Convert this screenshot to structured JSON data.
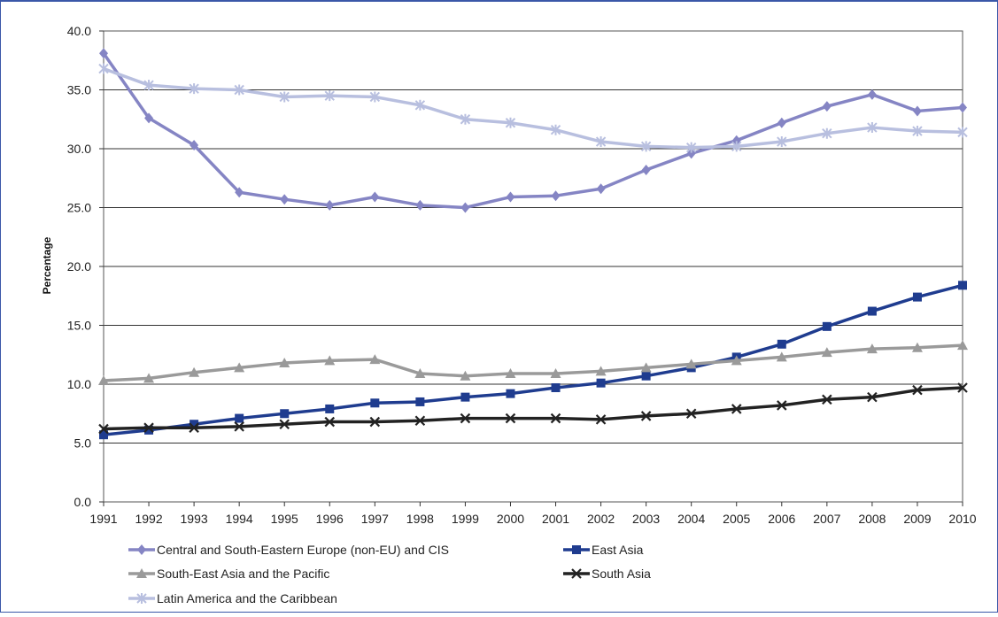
{
  "chart_data": {
    "type": "line",
    "title": "",
    "xlabel": "",
    "ylabel": "Percentage",
    "ylim": [
      0,
      40
    ],
    "ytick_step": 5,
    "grid": "horizontal",
    "legend_placement": "bottom",
    "categories": [
      "1991",
      "1992",
      "1993",
      "1994",
      "1995",
      "1996",
      "1997",
      "1998",
      "1999",
      "2000",
      "2001",
      "2002",
      "2003",
      "2004",
      "2005",
      "2006",
      "2007",
      "2008",
      "2009",
      "2010"
    ],
    "series": [
      {
        "name": "Central and South-Eastern Europe (non-EU) and CIS",
        "color": "#8585c4",
        "marker": "diamond",
        "values": [
          38.1,
          32.6,
          30.3,
          26.3,
          25.7,
          25.2,
          25.9,
          25.2,
          25.0,
          25.9,
          26.0,
          26.6,
          28.2,
          29.6,
          30.7,
          32.2,
          33.6,
          34.6,
          33.2,
          33.5
        ]
      },
      {
        "name": "East Asia",
        "color": "#1f3c8f",
        "marker": "square",
        "values": [
          5.7,
          6.1,
          6.6,
          7.1,
          7.5,
          7.9,
          8.4,
          8.5,
          8.9,
          9.2,
          9.7,
          10.1,
          10.7,
          11.4,
          12.3,
          13.4,
          14.9,
          16.2,
          17.4,
          18.4
        ]
      },
      {
        "name": "South-East Asia and the Pacific",
        "color": "#9a9a9a",
        "marker": "triangle",
        "values": [
          10.3,
          10.5,
          11.0,
          11.4,
          11.8,
          12.0,
          12.1,
          10.9,
          10.7,
          10.9,
          10.9,
          11.1,
          11.4,
          11.7,
          12.0,
          12.3,
          12.7,
          13.0,
          13.1,
          13.3
        ]
      },
      {
        "name": "South Asia",
        "color": "#222222",
        "marker": "x",
        "values": [
          6.2,
          6.3,
          6.3,
          6.4,
          6.6,
          6.8,
          6.8,
          6.9,
          7.1,
          7.1,
          7.1,
          7.0,
          7.3,
          7.5,
          7.9,
          8.2,
          8.7,
          8.9,
          9.5,
          9.7
        ]
      },
      {
        "name": "Latin America and the Caribbean",
        "color": "#b8bfdf",
        "marker": "star",
        "values": [
          36.8,
          35.4,
          35.1,
          35.0,
          34.4,
          34.5,
          34.4,
          33.7,
          32.5,
          32.2,
          31.6,
          30.6,
          30.2,
          30.1,
          30.2,
          30.6,
          31.3,
          31.8,
          31.5,
          31.4
        ]
      }
    ]
  }
}
